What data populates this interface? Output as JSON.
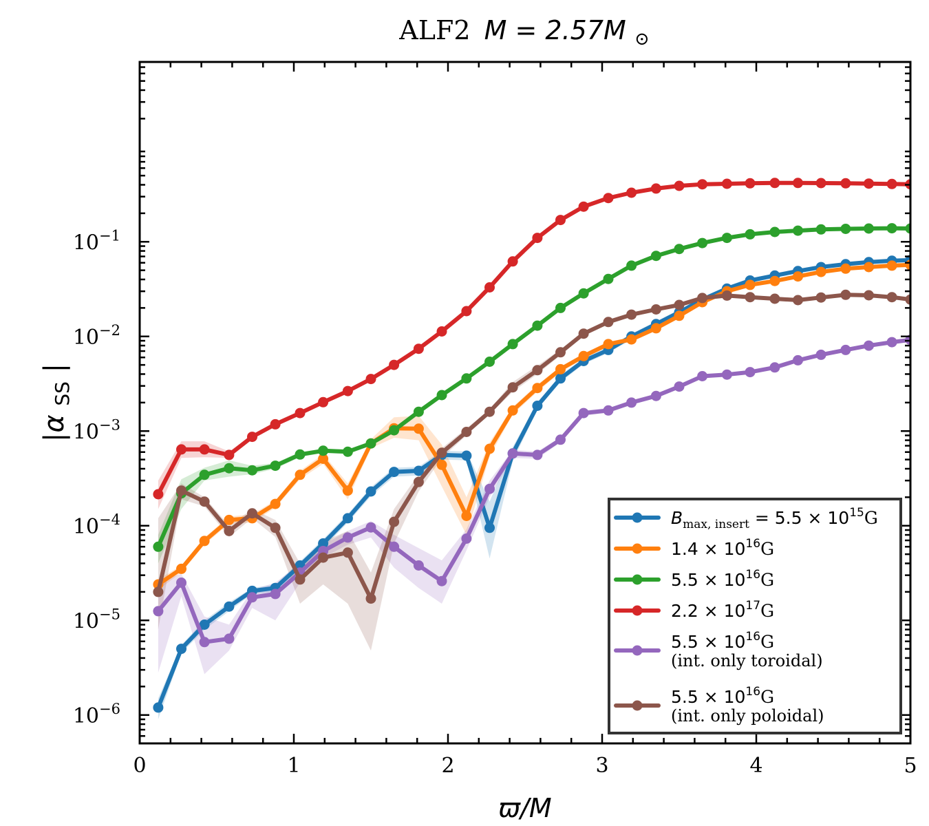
{
  "chart_data": {
    "type": "line",
    "title_prefix": "ALF2",
    "title_math": "M = 2.57M",
    "title_sub": "⊙",
    "xlabel": "ϖ/M",
    "ylabel_base": "|α",
    "ylabel_sub": "SS",
    "ylabel_close": "|",
    "xlim": [
      0,
      5
    ],
    "ylim_log10": [
      -6.3,
      0.9
    ],
    "x_ticks": [
      0,
      1,
      2,
      3,
      4,
      5
    ],
    "x_tick_labels": [
      "0",
      "1",
      "2",
      "3",
      "4",
      "5"
    ],
    "y_ticks_log10": [
      -6,
      -5,
      -4,
      -3,
      -2,
      -1
    ],
    "y_tick_base": "10",
    "y_tick_exponents": [
      "−6",
      "−5",
      "−4",
      "−3",
      "−2",
      "−1"
    ],
    "legend_position": "bottom-right",
    "x": [
      0.12,
      0.27,
      0.42,
      0.58,
      0.73,
      0.88,
      1.04,
      1.19,
      1.35,
      1.5,
      1.65,
      1.81,
      1.96,
      2.12,
      2.27,
      2.42,
      2.58,
      2.73,
      2.88,
      3.04,
      3.19,
      3.35,
      3.5,
      3.65,
      3.81,
      3.96,
      4.12,
      4.27,
      4.42,
      4.58,
      4.73,
      4.88,
      5.0
    ],
    "series": [
      {
        "name": "B_max,insert = 5.5 × 10^15 G",
        "legend_math": "B",
        "legend_sub": "max, insert",
        "legend_rest": " = 5.5 × 10",
        "legend_sup": "15",
        "legend_unit": "G",
        "legend_line2": "",
        "color": "#1f77b4",
        "values": [
          1.2e-06,
          5e-06,
          9e-06,
          1.4e-05,
          2.05e-05,
          2.2e-05,
          3.8e-05,
          6.5e-05,
          0.00012,
          0.00023,
          0.00037,
          0.00038,
          0.00056,
          0.00055,
          9.5e-05,
          0.00058,
          0.00185,
          0.0036,
          0.0055,
          0.0072,
          0.01,
          0.0135,
          0.018,
          0.0245,
          0.032,
          0.039,
          0.044,
          0.049,
          0.054,
          0.058,
          0.061,
          0.063,
          0.064
        ],
        "band_lower": [
          9e-07,
          4.5e-06,
          8e-06,
          1.25e-05,
          1.9e-05,
          2e-05,
          3.4e-05,
          5.8e-05,
          0.000108,
          0.000205,
          0.00033,
          0.00034,
          0.0005,
          0.00049,
          4.5e-05,
          0.00048,
          0.0017,
          0.0033,
          0.0051,
          0.0067,
          0.0093,
          0.0126,
          0.0168,
          0.023,
          0.03,
          0.037,
          0.042,
          0.047,
          0.052,
          0.056,
          0.059,
          0.061,
          0.062
        ],
        "band_upper": [
          1.5e-06,
          5.5e-06,
          1e-05,
          1.55e-05,
          2.2e-05,
          2.4e-05,
          4.2e-05,
          7.2e-05,
          0.000133,
          0.000255,
          0.00041,
          0.00042,
          0.00062,
          0.00061,
          0.00018,
          0.00068,
          0.002,
          0.0039,
          0.0059,
          0.0077,
          0.0107,
          0.0144,
          0.0192,
          0.026,
          0.034,
          0.041,
          0.046,
          0.051,
          0.056,
          0.06,
          0.063,
          0.065,
          0.066
        ]
      },
      {
        "name": "1.4 × 10^16 G",
        "legend_math": "",
        "legend_sub": "",
        "legend_rest": "1.4 × 10",
        "legend_sup": "16",
        "legend_unit": "G",
        "legend_line2": "",
        "color": "#ff7f0e",
        "values": [
          2.4e-05,
          3.5e-05,
          6.9e-05,
          0.000115,
          0.00012,
          0.00017,
          0.000345,
          0.00051,
          0.000235,
          0.00074,
          0.00107,
          0.00106,
          0.00044,
          0.000127,
          0.00065,
          0.00165,
          0.00285,
          0.0045,
          0.0062,
          0.0083,
          0.0093,
          0.0122,
          0.0165,
          0.023,
          0.03,
          0.035,
          0.0385,
          0.043,
          0.048,
          0.052,
          0.054,
          0.056,
          0.057
        ],
        "band_lower": [
          2.1e-05,
          3.2e-05,
          6.3e-05,
          0.000105,
          0.000108,
          0.000155,
          0.00031,
          0.00045,
          0.00019,
          0.00066,
          0.00085,
          0.0008,
          0.00026,
          8e-05,
          0.00054,
          0.0015,
          0.0026,
          0.0042,
          0.0058,
          0.0078,
          0.0088,
          0.0115,
          0.0156,
          0.0218,
          0.0285,
          0.0335,
          0.037,
          0.041,
          0.046,
          0.05,
          0.052,
          0.054,
          0.055
        ],
        "band_upper": [
          2.7e-05,
          3.8e-05,
          7.5e-05,
          0.000125,
          0.000132,
          0.000185,
          0.00038,
          0.00057,
          0.00028,
          0.00082,
          0.0014,
          0.00145,
          0.00072,
          0.0002,
          0.00076,
          0.0018,
          0.0031,
          0.0048,
          0.0066,
          0.0088,
          0.0098,
          0.0129,
          0.0174,
          0.0242,
          0.0315,
          0.0365,
          0.04,
          0.045,
          0.05,
          0.054,
          0.056,
          0.058,
          0.059
        ]
      },
      {
        "name": "5.5 × 10^16 G",
        "legend_math": "",
        "legend_sub": "",
        "legend_rest": "5.5 × 10",
        "legend_sup": "16",
        "legend_unit": "G",
        "legend_line2": "",
        "color": "#2ca02c",
        "values": [
          6e-05,
          0.00022,
          0.000345,
          0.000405,
          0.000385,
          0.00043,
          0.000565,
          0.00062,
          0.000605,
          0.00074,
          0.00102,
          0.0016,
          0.0024,
          0.0036,
          0.0054,
          0.0083,
          0.013,
          0.02,
          0.0285,
          0.0405,
          0.056,
          0.071,
          0.084,
          0.097,
          0.11,
          0.12,
          0.127,
          0.131,
          0.135,
          0.137,
          0.138,
          0.139,
          0.138
        ],
        "band_lower": [
          4e-05,
          0.00015,
          0.0003,
          0.00033,
          0.00035,
          0.0004,
          0.00053,
          0.00059,
          0.00057,
          0.0007,
          0.00097,
          0.00152,
          0.0023,
          0.00345,
          0.0052,
          0.008,
          0.0126,
          0.0194,
          0.0278,
          0.0395,
          0.0545,
          0.0695,
          0.0825,
          0.0955,
          0.108,
          0.118,
          0.125,
          0.129,
          0.133,
          0.135,
          0.136,
          0.137,
          0.136
        ],
        "band_upper": [
          8e-05,
          0.00031,
          0.00041,
          0.00049,
          0.00043,
          0.00046,
          0.0006,
          0.00065,
          0.00064,
          0.00078,
          0.00107,
          0.00168,
          0.0025,
          0.00375,
          0.0056,
          0.0086,
          0.0134,
          0.0206,
          0.0292,
          0.0415,
          0.0575,
          0.0725,
          0.0855,
          0.0985,
          0.112,
          0.122,
          0.129,
          0.133,
          0.137,
          0.139,
          0.14,
          0.141,
          0.14
        ]
      },
      {
        "name": "2.2 × 10^17 G",
        "legend_math": "",
        "legend_sub": "",
        "legend_rest": "2.2 × 10",
        "legend_sup": "17",
        "legend_unit": "G",
        "legend_line2": "",
        "color": "#d62728",
        "values": [
          0.000215,
          0.00064,
          0.00064,
          0.00056,
          0.00087,
          0.00118,
          0.00155,
          0.00202,
          0.00265,
          0.00355,
          0.005,
          0.0074,
          0.0113,
          0.0185,
          0.033,
          0.062,
          0.11,
          0.17,
          0.235,
          0.29,
          0.33,
          0.365,
          0.39,
          0.405,
          0.41,
          0.415,
          0.418,
          0.418,
          0.417,
          0.415,
          0.412,
          0.408,
          0.405
        ],
        "band_lower": [
          0.00015,
          0.00052,
          0.00053,
          0.00052,
          0.00083,
          0.00114,
          0.0015,
          0.00197,
          0.00258,
          0.00345,
          0.00485,
          0.0072,
          0.011,
          0.018,
          0.032,
          0.06,
          0.107,
          0.166,
          0.23,
          0.284,
          0.324,
          0.358,
          0.383,
          0.398,
          0.403,
          0.408,
          0.411,
          0.411,
          0.41,
          0.408,
          0.405,
          0.401,
          0.398
        ],
        "band_upper": [
          0.0003,
          0.00078,
          0.00078,
          0.00061,
          0.00091,
          0.00122,
          0.0016,
          0.00208,
          0.00272,
          0.00365,
          0.00515,
          0.0076,
          0.0116,
          0.019,
          0.034,
          0.064,
          0.113,
          0.174,
          0.24,
          0.296,
          0.336,
          0.372,
          0.397,
          0.412,
          0.417,
          0.422,
          0.425,
          0.425,
          0.424,
          0.422,
          0.419,
          0.415,
          0.412
        ]
      },
      {
        "name": "5.5 × 10^16 G (int. only toroidal)",
        "legend_math": "",
        "legend_sub": "",
        "legend_rest": "5.5 × 10",
        "legend_sup": "16",
        "legend_unit": "G",
        "legend_line2": "(int. only toroidal)",
        "color": "#9467bd",
        "values": [
          1.25e-05,
          2.5e-05,
          5.9e-06,
          6.4e-06,
          1.75e-05,
          1.9e-05,
          3.2e-05,
          5.4e-05,
          7.5e-05,
          9.6e-05,
          6e-05,
          3.8e-05,
          2.6e-05,
          7.3e-05,
          0.000245,
          0.00058,
          0.00056,
          0.00081,
          0.00155,
          0.00165,
          0.002,
          0.00235,
          0.00295,
          0.0038,
          0.00395,
          0.0042,
          0.0047,
          0.0056,
          0.0064,
          0.0072,
          0.008,
          0.0087,
          0.0092
        ],
        "band_lower": [
          2.8e-06,
          1.8e-05,
          2.7e-06,
          4.8e-06,
          1.35e-05,
          1e-05,
          2.5e-05,
          4.6e-05,
          6.3e-05,
          7.5e-05,
          3.6e-05,
          2.2e-05,
          1.5e-05,
          5.5e-05,
          0.0002,
          0.00052,
          0.00051,
          0.00076,
          0.00145,
          0.00156,
          0.0019,
          0.00224,
          0.00282,
          0.00365,
          0.0038,
          0.00405,
          0.00452,
          0.0054,
          0.0062,
          0.007,
          0.0078,
          0.00845,
          0.0089
        ],
        "band_upper": [
          2.6e-05,
          3.1e-05,
          1.1e-05,
          9e-06,
          2.1e-05,
          2.5e-05,
          4e-05,
          6.3e-05,
          8.8e-05,
          0.000112,
          8e-05,
          5.8e-05,
          4.3e-05,
          9.2e-05,
          0.0003,
          0.00063,
          0.00061,
          0.00086,
          0.00165,
          0.00175,
          0.00212,
          0.00248,
          0.0031,
          0.00396,
          0.00412,
          0.00438,
          0.0049,
          0.00582,
          0.00662,
          0.00742,
          0.00822,
          0.00895,
          0.0095
        ]
      },
      {
        "name": "5.5 × 10^16 G (int. only poloidal)",
        "legend_math": "",
        "legend_sub": "",
        "legend_rest": "5.5 × 10",
        "legend_sup": "16",
        "legend_unit": "G",
        "legend_line2": "(int. only poloidal)",
        "color": "#8c564b",
        "values": [
          2e-05,
          0.000235,
          0.00018,
          8.8e-05,
          0.000135,
          9.5e-05,
          2.7e-05,
          4.6e-05,
          5.2e-05,
          1.7e-05,
          0.00011,
          0.00029,
          0.00059,
          0.00098,
          0.0016,
          0.0029,
          0.0044,
          0.0068,
          0.0107,
          0.0142,
          0.017,
          0.0193,
          0.0215,
          0.0255,
          0.027,
          0.026,
          0.025,
          0.0242,
          0.0258,
          0.0275,
          0.0272,
          0.026,
          0.0245
        ],
        "band_lower": [
          8e-06,
          0.00019,
          0.00016,
          7.6e-05,
          0.00012,
          7.6e-05,
          1.5e-05,
          2.4e-05,
          1.5e-05,
          4.8e-06,
          6.5e-05,
          0.00023,
          0.00052,
          0.0009,
          0.0015,
          0.0026,
          0.004,
          0.0063,
          0.0101,
          0.0136,
          0.0164,
          0.0187,
          0.0208,
          0.0247,
          0.026,
          0.025,
          0.024,
          0.0233,
          0.0248,
          0.0265,
          0.0262,
          0.025,
          0.0235
        ],
        "band_upper": [
          0.00012,
          0.00028,
          0.0002,
          0.0001,
          0.00015,
          0.000115,
          4e-05,
          6.8e-05,
          8.8e-05,
          3.2e-05,
          0.00015,
          0.00035,
          0.00066,
          0.00107,
          0.0017,
          0.0033,
          0.0049,
          0.0073,
          0.0113,
          0.0148,
          0.0176,
          0.0199,
          0.0222,
          0.0263,
          0.028,
          0.027,
          0.026,
          0.0251,
          0.0268,
          0.0285,
          0.0282,
          0.027,
          0.0255
        ]
      }
    ]
  }
}
